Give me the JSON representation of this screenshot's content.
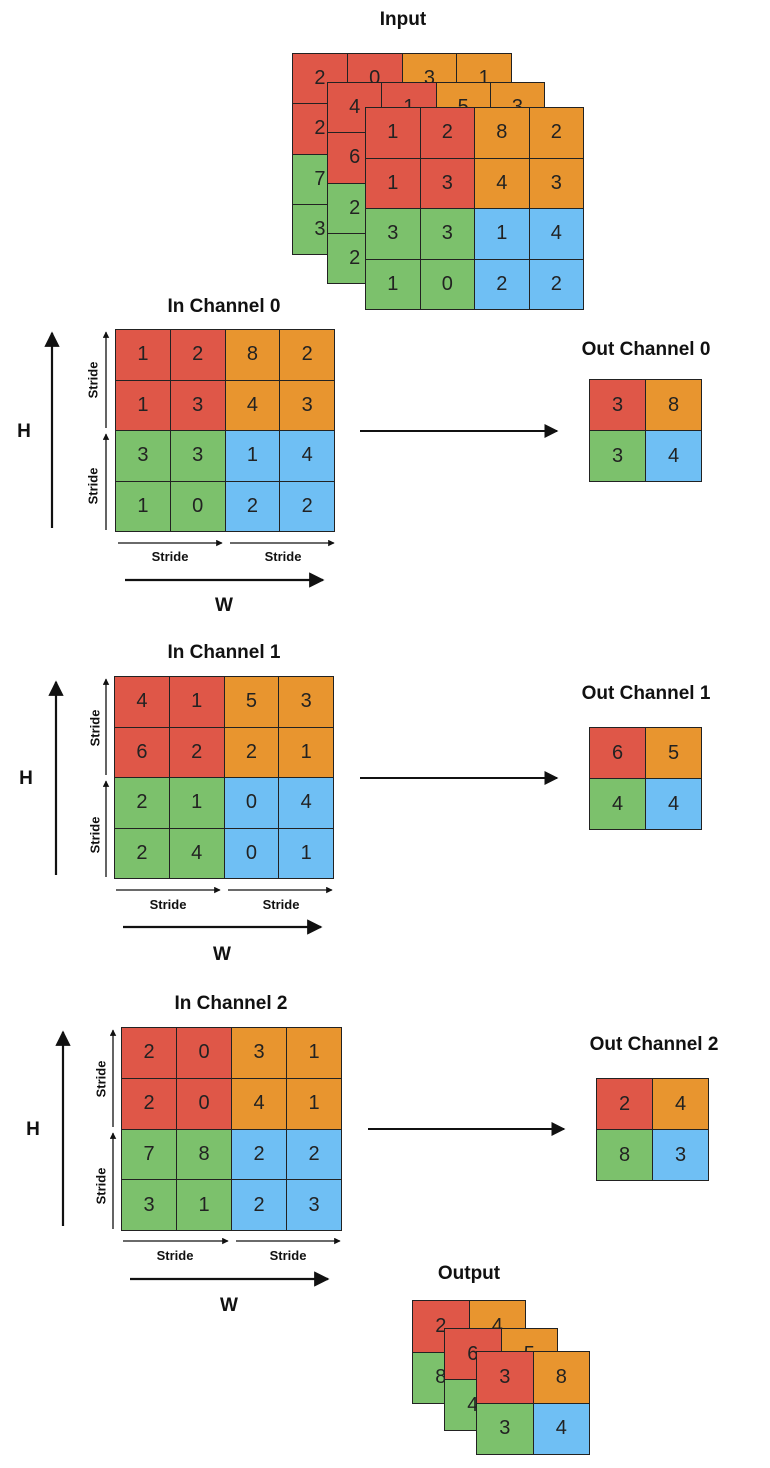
{
  "colors": {
    "red": "#df5748",
    "orange": "#e8952f",
    "green": "#7cc16c",
    "blue": "#6fbff4"
  },
  "labels": {
    "input": "Input",
    "output": "Output",
    "h": "H",
    "w": "W",
    "stride": "Stride"
  },
  "channels": [
    {
      "in_title": "In Channel 0",
      "out_title": "Out Channel 0",
      "in_grid": [
        [
          "1",
          "2",
          "8",
          "2"
        ],
        [
          "1",
          "3",
          "4",
          "3"
        ],
        [
          "3",
          "3",
          "1",
          "4"
        ],
        [
          "1",
          "0",
          "2",
          "2"
        ]
      ],
      "out_grid": [
        [
          "3",
          "8"
        ],
        [
          "3",
          "4"
        ]
      ]
    },
    {
      "in_title": "In Channel 1",
      "out_title": "Out Channel 1",
      "in_grid": [
        [
          "4",
          "1",
          "5",
          "3"
        ],
        [
          "6",
          "2",
          "2",
          "1"
        ],
        [
          "2",
          "1",
          "0",
          "4"
        ],
        [
          "2",
          "4",
          "0",
          "1"
        ]
      ],
      "out_grid": [
        [
          "6",
          "5"
        ],
        [
          "4",
          "4"
        ]
      ]
    },
    {
      "in_title": "In Channel 2",
      "out_title": "Out Channel 2",
      "in_grid": [
        [
          "2",
          "0",
          "3",
          "1"
        ],
        [
          "2",
          "0",
          "4",
          "1"
        ],
        [
          "7",
          "8",
          "2",
          "2"
        ],
        [
          "3",
          "1",
          "2",
          "3"
        ]
      ],
      "out_grid": [
        [
          "2",
          "4"
        ],
        [
          "8",
          "3"
        ]
      ]
    }
  ]
}
